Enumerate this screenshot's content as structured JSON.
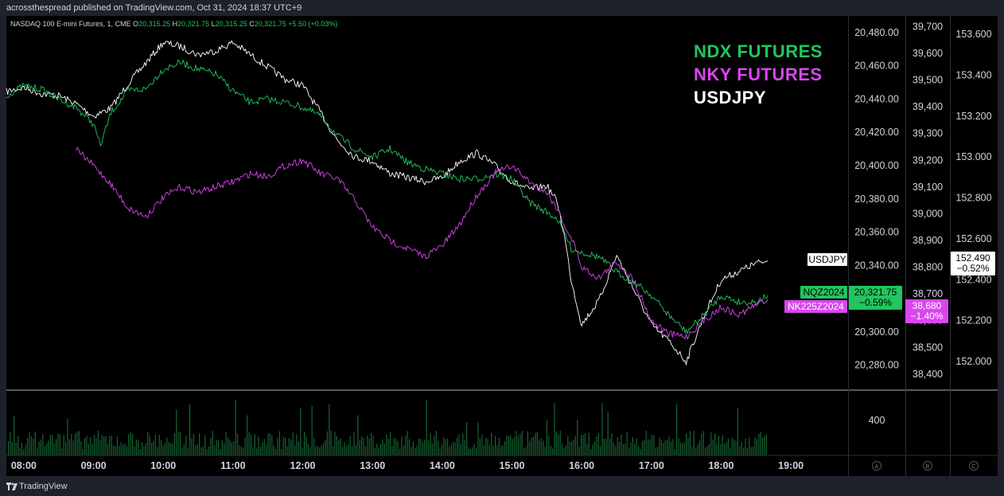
{
  "header": {
    "published_text": "acrossthespread published on TradingView.com, Oct 31, 2024 18:37 UTC+9"
  },
  "footer": {
    "brand": "TradingView"
  },
  "chart_data": {
    "type": "line",
    "info_bar": {
      "symbol": "NASDAQ 100 E-mini Futures, 1, CME",
      "o_label": "O",
      "o_value": "20,315.25",
      "h_label": "H",
      "h_value": "20,321.75",
      "l_label": "L",
      "l_value": "20,315.25",
      "c_label": "C",
      "c_value": "20,321.75",
      "change": "+5.50 (+0.03%)"
    },
    "legend": [
      {
        "name": "NDX FUTURES",
        "color": "#22c55e"
      },
      {
        "name": "NKY FUTURES",
        "color": "#d946ef"
      },
      {
        "name": "USDJPY",
        "color": "#ffffff"
      }
    ],
    "x_ticks": [
      "08:00",
      "09:00",
      "10:00",
      "11:00",
      "12:00",
      "13:00",
      "14:00",
      "15:00",
      "16:00",
      "17:00",
      "18:00",
      "19:00"
    ],
    "x_range": [
      7.75,
      19.82
    ],
    "axes": [
      {
        "id": "A",
        "range": [
          20265,
          20490
        ],
        "ticks": [
          "20,280.00",
          "20,300.00",
          "20,320.00",
          "20,340.00",
          "20,360.00",
          "20,380.00",
          "20,400.00",
          "20,420.00",
          "20,440.00",
          "20,460.00",
          "20,480.00"
        ]
      },
      {
        "id": "B",
        "range": [
          38340,
          39740
        ],
        "ticks": [
          "38,400",
          "38,500",
          "38,600",
          "38,700",
          "38,800",
          "38,900",
          "39,000",
          "39,100",
          "39,200",
          "39,300",
          "39,400",
          "39,500",
          "39,600",
          "39,700"
        ]
      },
      {
        "id": "C",
        "range": [
          151.86,
          153.69
        ],
        "ticks": [
          "152.000",
          "152.200",
          "152.400",
          "152.600",
          "152.800",
          "153.000",
          "153.200",
          "153.400",
          "153.600"
        ]
      }
    ],
    "axis_footer_labels": [
      "A",
      "B",
      "C"
    ],
    "volume_tick": "400",
    "volume_max": 600,
    "series": [
      {
        "name": "NQZ2024",
        "color": "#22c55e",
        "axis": "A",
        "last": "20,321.75",
        "change": "−0.59%",
        "x": [
          7.75,
          8.0,
          8.25,
          8.5,
          8.75,
          9.0,
          9.1,
          9.25,
          9.5,
          9.75,
          10.0,
          10.25,
          10.5,
          10.75,
          11.0,
          11.25,
          11.5,
          11.75,
          12.0,
          12.25,
          12.5,
          12.75,
          13.0,
          13.25,
          13.5,
          13.75,
          14.0,
          14.25,
          14.5,
          14.75,
          15.0,
          15.25,
          15.5,
          15.65,
          15.75,
          15.85,
          16.0,
          16.25,
          16.5,
          16.75,
          17.0,
          17.25,
          17.5,
          17.75,
          18.0,
          18.25,
          18.5,
          18.67
        ],
        "y": [
          20442,
          20448,
          20446,
          20440,
          20435,
          20425,
          20412,
          20432,
          20445,
          20446,
          20458,
          20462,
          20458,
          20455,
          20445,
          20438,
          20440,
          20438,
          20435,
          20430,
          20418,
          20410,
          20405,
          20410,
          20402,
          20398,
          20395,
          20392,
          20392,
          20395,
          20392,
          20378,
          20372,
          20368,
          20360,
          20350,
          20348,
          20345,
          20336,
          20330,
          20322,
          20310,
          20300,
          20310,
          20322,
          20318,
          20318,
          20322
        ]
      },
      {
        "name": "NK225Z2024",
        "color": "#d946ef",
        "axis": "B",
        "last": "38,680",
        "change": "−1.40%",
        "x": [
          8.75,
          9.0,
          9.25,
          9.5,
          9.75,
          10.0,
          10.25,
          10.5,
          10.75,
          11.0,
          11.25,
          11.5,
          11.75,
          12.0,
          12.25,
          12.5,
          12.75,
          13.0,
          13.25,
          13.5,
          13.75,
          14.0,
          14.25,
          14.5,
          14.75,
          15.0,
          15.25,
          15.5,
          15.65,
          15.75,
          15.9,
          16.0,
          16.25,
          16.5,
          16.75,
          17.0,
          17.25,
          17.5,
          17.75,
          18.0,
          18.25,
          18.5,
          18.67
        ],
        "y": [
          39240,
          39180,
          39110,
          39020,
          38990,
          39060,
          39100,
          39080,
          39100,
          39120,
          39150,
          39140,
          39180,
          39200,
          39150,
          39130,
          39050,
          38950,
          38900,
          38870,
          38840,
          38880,
          38960,
          39070,
          39150,
          39180,
          39120,
          39080,
          39020,
          38960,
          38880,
          38800,
          38760,
          38820,
          38750,
          38600,
          38550,
          38540,
          38600,
          38650,
          38620,
          38660,
          38680
        ]
      },
      {
        "name": "USDJPY",
        "color": "#ffffff",
        "axis": "C",
        "last": "152.490",
        "change": "−0.52%",
        "x": [
          7.75,
          8.0,
          8.25,
          8.5,
          8.75,
          9.0,
          9.25,
          9.5,
          9.75,
          10.0,
          10.25,
          10.5,
          10.75,
          11.0,
          11.25,
          11.5,
          11.75,
          12.0,
          12.25,
          12.5,
          12.75,
          13.0,
          13.25,
          13.5,
          13.75,
          14.0,
          14.25,
          14.5,
          14.75,
          15.0,
          15.25,
          15.5,
          15.65,
          15.75,
          15.85,
          16.0,
          16.25,
          16.5,
          16.75,
          17.0,
          17.25,
          17.5,
          17.75,
          18.0,
          18.25,
          18.5,
          18.67
        ],
        "y": [
          153.32,
          153.34,
          153.31,
          153.3,
          153.26,
          153.2,
          153.24,
          153.36,
          153.46,
          153.56,
          153.54,
          153.5,
          153.52,
          153.56,
          153.5,
          153.44,
          153.38,
          153.35,
          153.22,
          153.08,
          153.0,
          152.98,
          152.92,
          152.9,
          152.88,
          152.9,
          152.98,
          153.02,
          152.96,
          152.88,
          152.84,
          152.86,
          152.78,
          152.62,
          152.4,
          152.18,
          152.3,
          152.52,
          152.35,
          152.18,
          152.1,
          152.0,
          152.22,
          152.4,
          152.44,
          152.48,
          152.49
        ]
      }
    ]
  }
}
